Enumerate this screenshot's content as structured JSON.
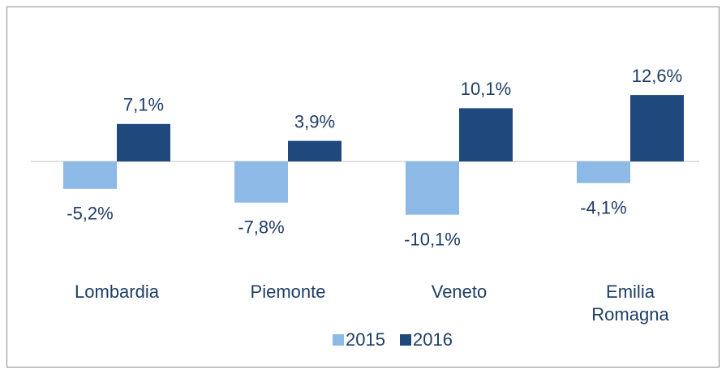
{
  "chart_data": {
    "type": "bar",
    "categories": [
      "Lombardia",
      "Piemonte",
      "Veneto",
      "Emilia Romagna"
    ],
    "series": [
      {
        "name": "2015",
        "color": "#8db9e6",
        "values": [
          -5.2,
          -7.8,
          -10.1,
          -4.1
        ],
        "value_labels": [
          "-5,2%",
          "-7,8%",
          "-10,1%",
          "-4,1%"
        ]
      },
      {
        "name": "2016",
        "color": "#1f497d",
        "values": [
          7.1,
          3.9,
          10.1,
          12.6
        ],
        "value_labels": [
          "7,1%",
          "3,9%",
          "10,1%",
          "12,6%"
        ]
      }
    ],
    "legend": "bottom"
  }
}
